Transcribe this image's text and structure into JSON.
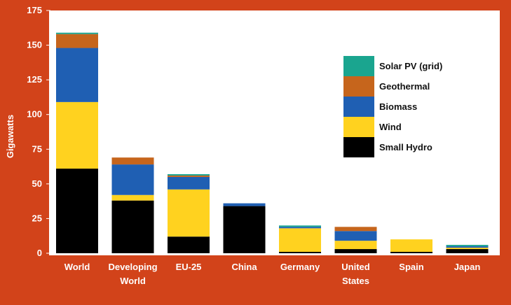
{
  "chart_data": {
    "type": "bar",
    "stacked": true,
    "ylabel": "Gigawatts",
    "xlabel": "",
    "ylim": [
      0,
      175
    ],
    "yticks": [
      0,
      25,
      50,
      75,
      100,
      125,
      150,
      175
    ],
    "categories": [
      [
        "World"
      ],
      [
        "Developing",
        "World"
      ],
      [
        "EU-25"
      ],
      [
        "China"
      ],
      [
        "Germany"
      ],
      [
        "United",
        "States"
      ],
      [
        "Spain"
      ],
      [
        "Japan"
      ]
    ],
    "series": [
      {
        "name": "Small Hydro",
        "color": "#000000",
        "values": [
          61,
          38,
          12,
          34,
          1,
          3,
          1,
          3
        ]
      },
      {
        "name": "Wind",
        "color": "#ffd21f",
        "values": [
          48,
          4,
          34,
          0,
          17,
          6,
          9,
          1
        ]
      },
      {
        "name": "Biomass",
        "color": "#1f5fb3",
        "values": [
          39,
          22,
          9,
          2,
          1,
          7,
          0,
          1
        ]
      },
      {
        "name": "Geothermal",
        "color": "#c6651c",
        "values": [
          10,
          5,
          1,
          0,
          0,
          3,
          0,
          0
        ]
      },
      {
        "name": "Solar PV (grid)",
        "color": "#1aa58f",
        "values": [
          1,
          0,
          1,
          0,
          1,
          0,
          0,
          1
        ]
      }
    ],
    "legend_order": [
      "Solar PV (grid)",
      "Geothermal",
      "Biomass",
      "Wind",
      "Small Hydro"
    ],
    "legend_position": "top-right",
    "grid": false
  }
}
